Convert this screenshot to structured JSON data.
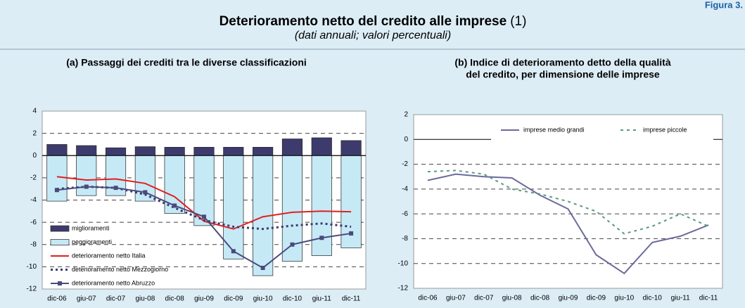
{
  "header": {
    "figure_label": "Figura 3.",
    "title": "Deterioramento netto del credito alle imprese",
    "title_note": "(1)",
    "subtitle": "(dati annuali; valori percentuali)"
  },
  "chart_data": [
    {
      "type": "combo",
      "title": [
        "(a) Passaggi dei crediti tra le diverse classificazioni"
      ],
      "categories": [
        "dic-06",
        "giu-07",
        "dic-07",
        "giu-08",
        "dic-08",
        "giu-09",
        "dic-09",
        "giu-10",
        "dic-10",
        "giu-11",
        "dic-11"
      ],
      "ylim": [
        -12,
        4
      ],
      "yticks": [
        -12,
        -10,
        -8,
        -6,
        -4,
        -2,
        0,
        2,
        4
      ],
      "grid": "dashed",
      "legend": "lower left",
      "series": [
        {
          "name": "miglioramenti",
          "kind": "bar",
          "color": "#3d3b6e",
          "values": [
            1.0,
            0.9,
            0.7,
            0.8,
            0.75,
            0.75,
            0.75,
            0.75,
            1.5,
            1.6,
            1.35
          ]
        },
        {
          "name": "peggioramenti",
          "kind": "bar",
          "color": "#c6e9f6",
          "values": [
            -4.1,
            -3.6,
            -3.6,
            -4.1,
            -5.2,
            -6.3,
            -9.3,
            -10.8,
            -9.5,
            -9.0,
            -8.3
          ]
        },
        {
          "name": "deterioramento netto Italia",
          "kind": "line",
          "style": "solid",
          "color": "#e02020",
          "values": [
            -1.9,
            -2.2,
            -2.1,
            -2.5,
            -3.7,
            -5.9,
            -6.6,
            -5.5,
            -5.1,
            -5.0,
            -5.05
          ]
        },
        {
          "name": "deterioramento netto Mezzogiorno",
          "kind": "line",
          "style": "dotted",
          "color": "#3d3b6e",
          "values": [
            -3.0,
            -2.8,
            -2.9,
            -3.5,
            -4.7,
            -5.8,
            -6.4,
            -6.6,
            -6.3,
            -6.1,
            -6.4
          ]
        },
        {
          "name": "deterioramento netto Abruzzo",
          "kind": "line",
          "style": "solid",
          "marker": "square",
          "color": "#4a4a7c",
          "values": [
            -3.1,
            -2.8,
            -2.9,
            -3.3,
            -4.5,
            -5.5,
            -8.6,
            -10.1,
            -8.0,
            -7.4,
            -7.0
          ]
        }
      ]
    },
    {
      "type": "line",
      "title": [
        "(b) Indice di deterioramento detto della qualità",
        "del credito, per dimensione delle imprese"
      ],
      "categories": [
        "dic-06",
        "giu-07",
        "dic-07",
        "giu-08",
        "dic-08",
        "giu-09",
        "dic-09",
        "giu-10",
        "dic-10",
        "giu-11",
        "dic-11"
      ],
      "ylim": [
        -12,
        2
      ],
      "yticks": [
        -12,
        -10,
        -8,
        -6,
        -4,
        -2,
        0,
        2
      ],
      "grid": "dashed",
      "legend": "top",
      "series": [
        {
          "name": "imprese medio grandi",
          "kind": "line",
          "style": "solid",
          "color": "#6b6a9c",
          "values": [
            -3.3,
            -2.8,
            -3.0,
            -3.1,
            -4.5,
            -5.6,
            -9.3,
            -10.8,
            -8.3,
            -7.8,
            -6.9
          ]
        },
        {
          "name": "imprese piccole",
          "kind": "line",
          "style": "dashed",
          "color": "#5a9a80",
          "values": [
            -2.6,
            -2.5,
            -2.8,
            -4.0,
            -4.4,
            -5.0,
            -5.8,
            -7.6,
            -7.0,
            -6.0,
            -7.0
          ]
        }
      ]
    }
  ]
}
